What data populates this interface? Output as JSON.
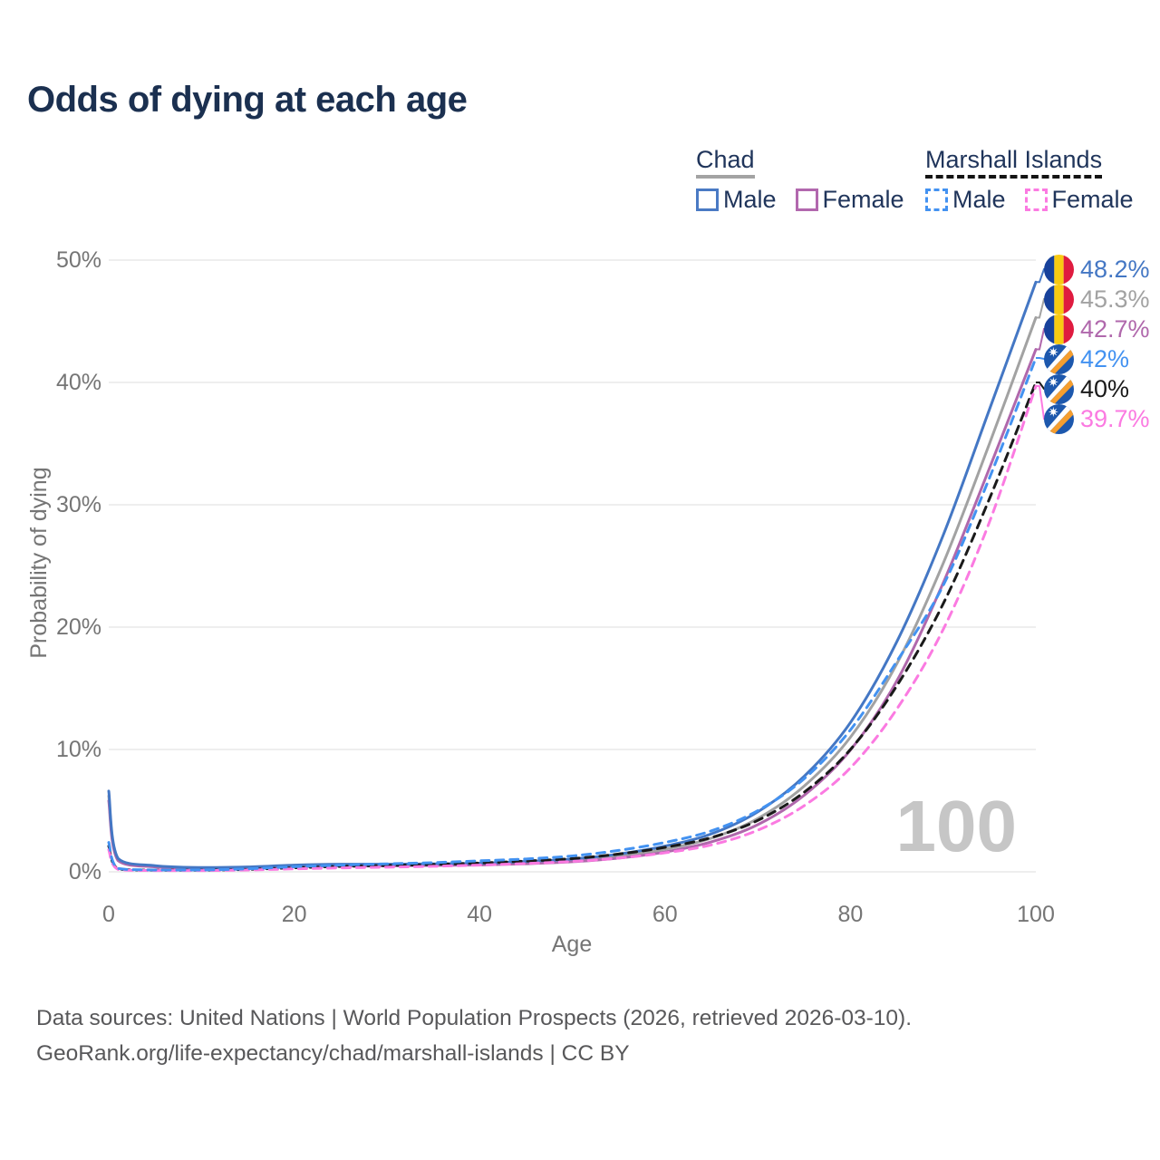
{
  "title": "Odds of dying at each age",
  "legend": {
    "groups": [
      {
        "name": "Chad",
        "underline_style": "solid",
        "underline_color": "#a3a3a3",
        "items": [
          {
            "label": "Male",
            "color": "#4a7ac4",
            "style": "solid"
          },
          {
            "label": "Female",
            "color": "#b268ae",
            "style": "solid"
          }
        ]
      },
      {
        "name": "Marshall Islands",
        "underline_style": "dashed",
        "underline_color": "#141414",
        "items": [
          {
            "label": "Male",
            "color": "#4392f1",
            "style": "dashed"
          },
          {
            "label": "Female",
            "color": "#fb7ae1",
            "style": "dashed"
          }
        ]
      }
    ]
  },
  "axes": {
    "x": {
      "label": "Age",
      "ticks": [
        0,
        20,
        40,
        60,
        80,
        100
      ],
      "range": [
        0,
        100
      ]
    },
    "y": {
      "label": "Probability of dying",
      "ticks": [
        "0%",
        "10%",
        "20%",
        "30%",
        "40%",
        "50%"
      ],
      "range_percent": [
        0,
        50
      ]
    }
  },
  "watermark": "100",
  "footer": {
    "line1": "Data sources: United Nations | World Population Prospects (2026, retrieved 2026-03-10).",
    "line2": "GeoRank.org/life-expectancy/chad/marshall-islands | CC BY"
  },
  "icons": {
    "chad_flag_colors": [
      "#17419b",
      "#f8ca12",
      "#df1b3f"
    ],
    "marshall_islands_flag_colors": {
      "field": "#1d58ad",
      "stripe_top": "#ffffff",
      "stripe_bottom": "#f59e2f",
      "star": "#ffffff"
    }
  },
  "chart_data": {
    "type": "line",
    "xlabel": "Age",
    "ylabel": "Probability of dying",
    "xlim": [
      0,
      100
    ],
    "ylim_percent": [
      0,
      50
    ],
    "grid": "horizontal",
    "legend_position": "top-right",
    "x": [
      0,
      1,
      5,
      10,
      15,
      20,
      25,
      30,
      35,
      40,
      45,
      50,
      55,
      60,
      65,
      70,
      75,
      80,
      85,
      90,
      95,
      100
    ],
    "series": [
      {
        "name": "Chad — Male",
        "country": "Chad",
        "sex": "Male",
        "flag": "td",
        "color": "#4477c4",
        "dash": "solid",
        "end_label": "48.2%",
        "values_percent": [
          6.6,
          1.1,
          0.5,
          0.35,
          0.4,
          0.55,
          0.62,
          0.62,
          0.65,
          0.7,
          0.85,
          1.05,
          1.45,
          2.1,
          3.1,
          4.9,
          7.8,
          12.2,
          18.8,
          27.5,
          37.8,
          48.2
        ]
      },
      {
        "name": "Chad — Both sexes",
        "country": "Chad",
        "sex": "Both",
        "flag": "td",
        "color": "#a2a2a2",
        "dash": "solid",
        "end_label": "45.3%",
        "values_percent": [
          6.2,
          1.0,
          0.45,
          0.3,
          0.35,
          0.48,
          0.54,
          0.55,
          0.58,
          0.62,
          0.75,
          0.93,
          1.28,
          1.85,
          2.75,
          4.35,
          7.0,
          11.0,
          17.0,
          25.2,
          35.0,
          45.3
        ]
      },
      {
        "name": "Chad — Female",
        "country": "Chad",
        "sex": "Female",
        "flag": "td",
        "color": "#b068ac",
        "dash": "solid",
        "end_label": "42.7%",
        "values_percent": [
          5.8,
          0.92,
          0.4,
          0.27,
          0.3,
          0.42,
          0.47,
          0.48,
          0.52,
          0.56,
          0.66,
          0.82,
          1.12,
          1.62,
          2.45,
          3.85,
          6.25,
          9.95,
          15.6,
          23.6,
          33.0,
          42.7
        ]
      },
      {
        "name": "Marshall Islands — Male",
        "country": "Marshall Islands",
        "sex": "Male",
        "flag": "mh",
        "color": "#4392f1",
        "dash": "dashed",
        "end_label": "42%",
        "values_percent": [
          2.4,
          0.28,
          0.15,
          0.15,
          0.25,
          0.42,
          0.55,
          0.65,
          0.75,
          0.9,
          1.05,
          1.3,
          1.75,
          2.4,
          3.35,
          5.0,
          7.6,
          11.6,
          17.2,
          23.4,
          32.2,
          42.0
        ]
      },
      {
        "name": "Marshall Islands — Both sexes",
        "country": "Marshall Islands",
        "sex": "Both",
        "flag": "mh",
        "color": "#1a1a1a",
        "dash": "dashed",
        "end_label": "40%",
        "values_percent": [
          2.1,
          0.24,
          0.13,
          0.13,
          0.2,
          0.33,
          0.44,
          0.52,
          0.6,
          0.72,
          0.88,
          1.08,
          1.45,
          2.0,
          2.8,
          4.2,
          6.5,
          10.0,
          15.2,
          21.9,
          30.5,
          40.0
        ]
      },
      {
        "name": "Marshall Islands — Female",
        "country": "Marshall Islands",
        "sex": "Female",
        "flag": "mh",
        "color": "#fb7ae1",
        "dash": "dashed",
        "end_label": "39.7%",
        "values_percent": [
          1.8,
          0.2,
          0.1,
          0.1,
          0.15,
          0.24,
          0.32,
          0.38,
          0.45,
          0.55,
          0.68,
          0.85,
          1.12,
          1.55,
          2.2,
          3.4,
          5.4,
          8.5,
          13.3,
          19.8,
          28.6,
          39.7
        ]
      }
    ]
  }
}
